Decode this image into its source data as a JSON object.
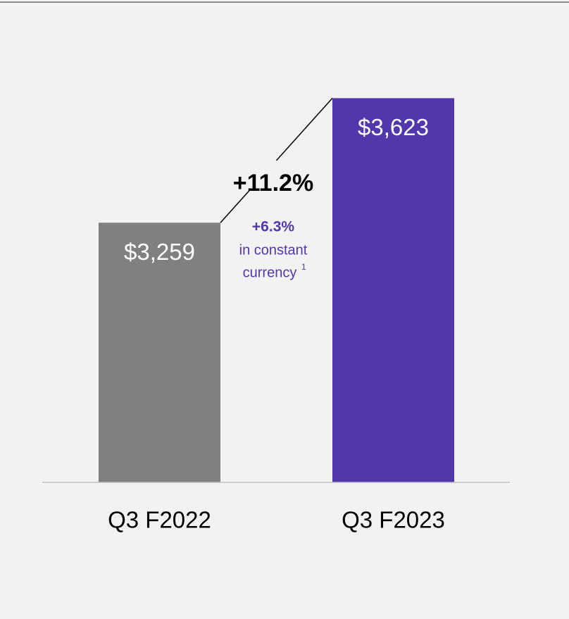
{
  "chart_data": {
    "type": "bar",
    "categories": [
      "Q3 F2022",
      "Q3 F2023"
    ],
    "values": [
      3259,
      3623
    ],
    "value_labels": [
      "$3,259",
      "$3,623"
    ],
    "colors": [
      "#808080",
      "#5236ab"
    ],
    "ylim": [
      2500,
      3700
    ],
    "annotations": [
      "+11.2%",
      "+6.3%",
      "in constant",
      "currency",
      "1"
    ]
  }
}
